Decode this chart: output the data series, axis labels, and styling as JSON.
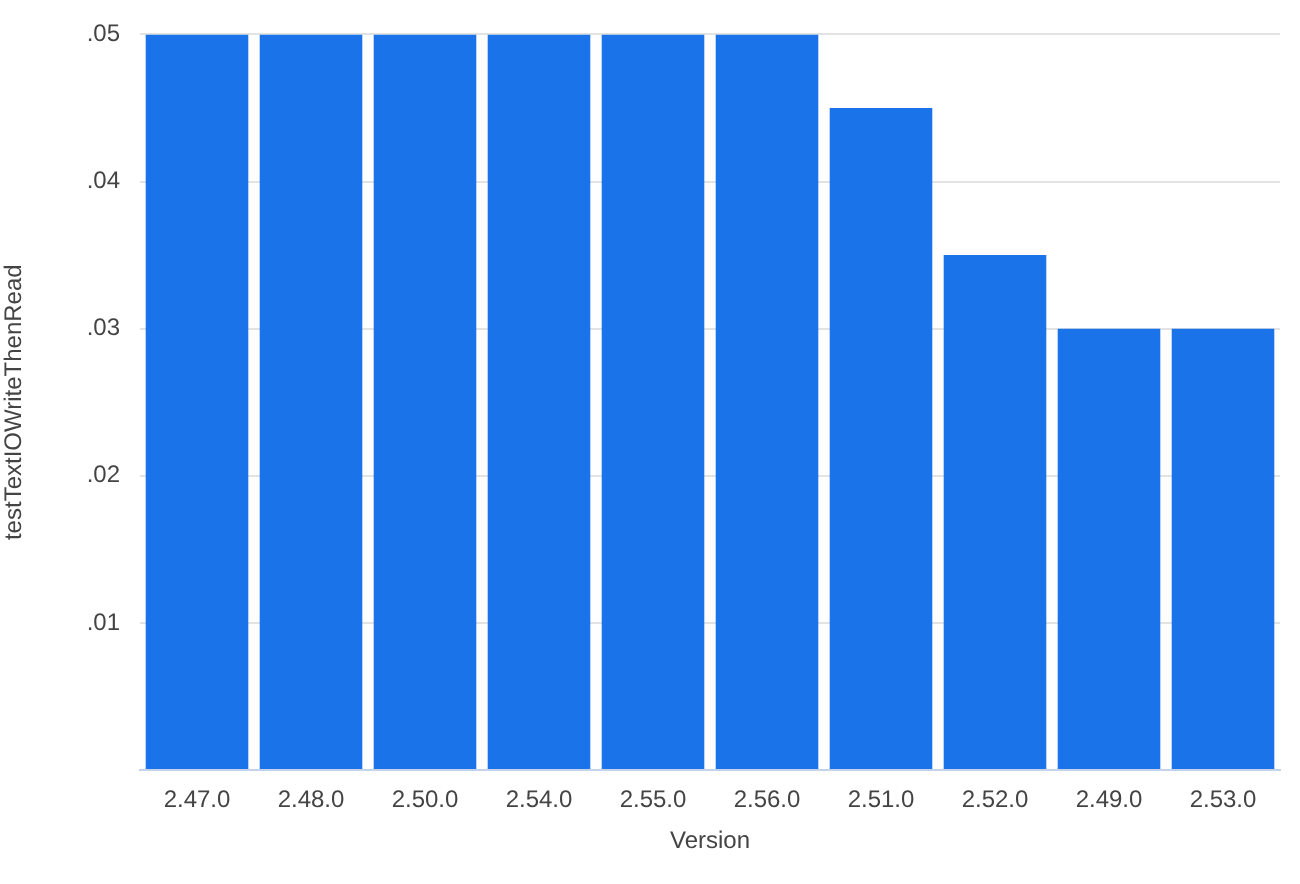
{
  "chart_data": {
    "type": "bar",
    "xlabel": "Version",
    "ylabel": "testTextIOWriteThenRead",
    "categories": [
      "2.47.0",
      "2.48.0",
      "2.50.0",
      "2.54.0",
      "2.55.0",
      "2.56.0",
      "2.51.0",
      "2.52.0",
      "2.49.0",
      "2.53.0"
    ],
    "values": [
      0.05,
      0.05,
      0.05,
      0.05,
      0.05,
      0.05,
      0.045,
      0.035,
      0.03,
      0.03
    ],
    "color": "#1a73e8",
    "ylim": [
      0,
      0.05
    ],
    "yticks": [
      {
        "value": 0,
        "label": null
      },
      {
        "value": 0.01,
        "label": ".01"
      },
      {
        "value": 0.02,
        "label": ".02"
      },
      {
        "value": 0.03,
        "label": ".03"
      },
      {
        "value": 0.04,
        "label": ".04"
      },
      {
        "value": 0.05,
        "label": ".05"
      }
    ],
    "grid": "y"
  }
}
